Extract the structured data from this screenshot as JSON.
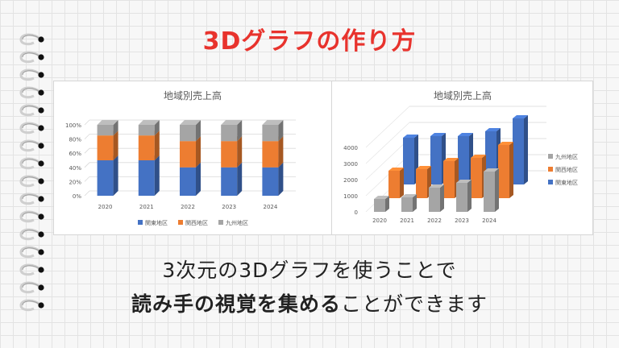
{
  "title": "3Dグラフの作り方",
  "caption": {
    "line1": "3次元の3Dグラフを使うことで",
    "line2_bold": "読み手の視覚を集める",
    "line2_rest": "ことができます"
  },
  "colors": {
    "accent": "#e8332d",
    "kanto": "#4472c4",
    "kansai": "#ed7d31",
    "kyushu": "#a5a5a5"
  },
  "chart_data": [
    {
      "type": "bar",
      "variant": "3d-100%-stacked-column",
      "title": "地域別売上高",
      "categories": [
        "2020",
        "2021",
        "2022",
        "2023",
        "2024"
      ],
      "yticks": [
        "0%",
        "20%",
        "40%",
        "60%",
        "80%",
        "100%"
      ],
      "ylim": [
        0,
        100
      ],
      "series": [
        {
          "name": "関東地区",
          "values": [
            50,
            50,
            40,
            40,
            40
          ]
        },
        {
          "name": "関西地区",
          "values": [
            35,
            35,
            37,
            37,
            37
          ]
        },
        {
          "name": "九州地区",
          "values": [
            15,
            15,
            23,
            23,
            23
          ]
        }
      ],
      "legend": "bottom"
    },
    {
      "type": "bar",
      "variant": "3d-column",
      "title": "地域別売上高",
      "categories": [
        "2020",
        "2021",
        "2022",
        "2023",
        "2024"
      ],
      "yticks": [
        "0",
        "1000",
        "2000",
        "3000",
        "4000"
      ],
      "ylim": [
        0,
        4000
      ],
      "series": [
        {
          "name": "九州地区",
          "values": [
            800,
            900,
            1500,
            1800,
            2500
          ]
        },
        {
          "name": "関西地区",
          "values": [
            1700,
            1800,
            2300,
            2500,
            3300
          ]
        },
        {
          "name": "関東地区",
          "values": [
            2900,
            3000,
            3000,
            3300,
            4100
          ]
        }
      ],
      "legend": "right"
    }
  ]
}
